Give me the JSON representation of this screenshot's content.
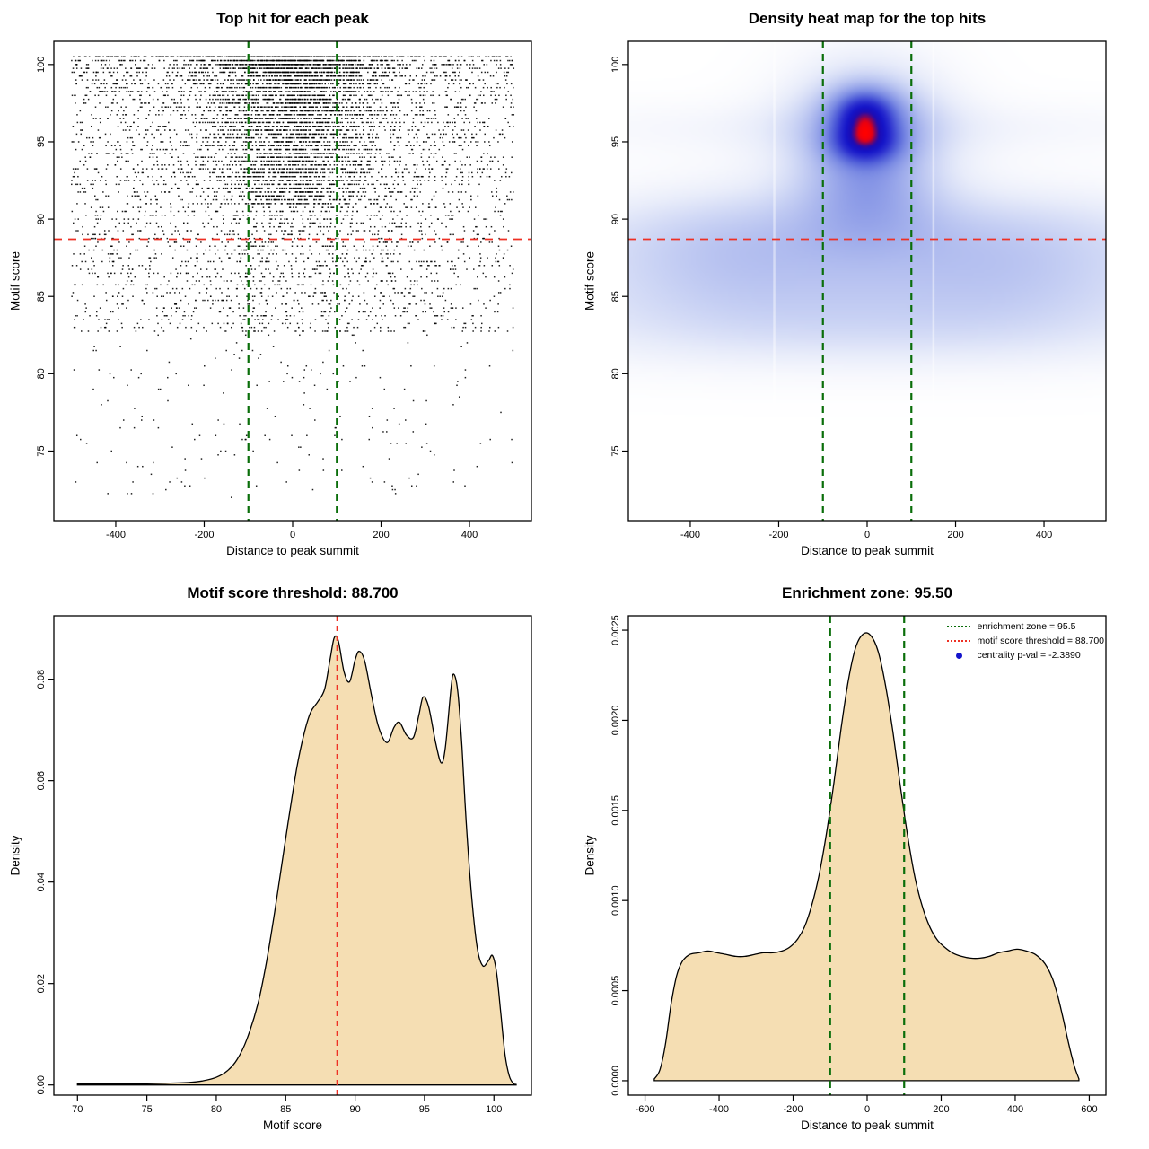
{
  "page": {
    "background": "#ffffff"
  },
  "chart_data": [
    {
      "key": "top_hit_scatter",
      "type": "scatter",
      "title": "Top hit for each peak",
      "xlabel": "Distance to peak summit",
      "ylabel": "Motif score",
      "xlim": [
        -540,
        540
      ],
      "ylim": [
        70.5,
        101.5
      ],
      "xticks": {
        "values": [
          -400,
          -200,
          0,
          200,
          400
        ],
        "labels": [
          "-400",
          "-200",
          "0",
          "200",
          "400"
        ]
      },
      "yticks": {
        "values": [
          75,
          80,
          85,
          90,
          95,
          100
        ],
        "labels": [
          "75",
          "80",
          "85",
          "90",
          "95",
          "100"
        ]
      },
      "grid": false,
      "point_color": "#000000",
      "threshold_line": {
        "y": 88.7,
        "color": "#ee3024",
        "style": "dashed"
      },
      "zone_lines": {
        "x": [
          -100,
          100
        ],
        "color": "#0a6e0a",
        "style": "dashed"
      },
      "scatter_model": {
        "seed": 1337,
        "n_background": 5200,
        "n_central_cluster": 3000,
        "x_uniform_range": [
          -500,
          500
        ],
        "central_cluster_x_sd": 95,
        "background_y": {
          "top": 100.6,
          "span": 18,
          "shape": 1.55
        },
        "cluster_y": {
          "top": 100.45,
          "span": 9.5,
          "shape": 1.4
        },
        "low_tail_fraction": 0.04,
        "low_tail_y_range": [
          72,
          83
        ],
        "score_quantum": 0.25
      }
    },
    {
      "key": "top_hit_density_heatmap",
      "type": "heatmap",
      "title": "Density heat map for the top hits",
      "xlabel": "Distance to peak summit",
      "ylabel": "Motif score",
      "xlim": [
        -540,
        540
      ],
      "ylim": [
        70.5,
        101.5
      ],
      "xticks": {
        "values": [
          -400,
          -200,
          0,
          200,
          400
        ],
        "labels": [
          "-400",
          "-200",
          "0",
          "200",
          "400"
        ]
      },
      "yticks": {
        "values": [
          75,
          80,
          85,
          90,
          95,
          100
        ],
        "labels": [
          "75",
          "80",
          "85",
          "90",
          "95",
          "100"
        ]
      },
      "grid": false,
      "threshold_line": {
        "y": 88.7,
        "color": "#ee3024",
        "style": "dashed"
      },
      "zone_lines": {
        "x": [
          -100,
          100
        ],
        "color": "#0a6e0a",
        "style": "dashed"
      },
      "hotspot": {
        "x": 0,
        "y": 96,
        "peak_color": "#ff0000"
      },
      "colormap": [
        {
          "t": 0.0,
          "c": "#ffffff"
        },
        {
          "t": 0.04,
          "c": "#f7f8fd"
        },
        {
          "t": 0.1,
          "c": "#e8ecfa"
        },
        {
          "t": 0.2,
          "c": "#c9d2f4"
        },
        {
          "t": 0.33,
          "c": "#a3b0ec"
        },
        {
          "t": 0.47,
          "c": "#7a8ae3"
        },
        {
          "t": 0.6,
          "c": "#4f5dd8"
        },
        {
          "t": 0.72,
          "c": "#2b2fcf"
        },
        {
          "t": 0.82,
          "c": "#1414c8"
        },
        {
          "t": 0.9,
          "c": "#1d0bb2"
        },
        {
          "t": 0.945,
          "c": "#7a0660"
        },
        {
          "t": 0.975,
          "c": "#e60012"
        },
        {
          "t": 1.0,
          "c": "#ff0000"
        }
      ],
      "density_kernels": [
        {
          "x": 0,
          "y": 86.3,
          "sx": 600,
          "sy": 2.8,
          "a": 0.42
        },
        {
          "x": 0,
          "y": 89.3,
          "sx": 600,
          "sy": 2.0,
          "a": 0.3
        },
        {
          "x": 0,
          "y": 83.8,
          "sx": 600,
          "sy": 2.4,
          "a": 0.22
        },
        {
          "x": -310,
          "y": 88.2,
          "sx": 150,
          "sy": 3.0,
          "a": 0.18
        },
        {
          "x": 330,
          "y": 87.2,
          "sx": 160,
          "sy": 3.0,
          "a": 0.16
        },
        {
          "x": 0,
          "y": 95.9,
          "sx": 600,
          "sy": 1.3,
          "a": 0.16
        },
        {
          "x": 0,
          "y": 95.7,
          "sx": 135,
          "sy": 3.3,
          "a": 0.55
        },
        {
          "x": 0,
          "y": 95.7,
          "sx": 95,
          "sy": 2.3,
          "a": 0.5
        },
        {
          "x": -5,
          "y": 96.9,
          "sx": 52,
          "sy": 1.1,
          "a": 1.35
        },
        {
          "x": -5,
          "y": 94.9,
          "sx": 56,
          "sy": 0.95,
          "a": 1.15
        },
        {
          "x": 0,
          "y": 92.3,
          "sx": 95,
          "sy": 1.8,
          "a": 0.35
        },
        {
          "x": 0,
          "y": 90.3,
          "sx": 130,
          "sy": 2.2,
          "a": 0.3
        },
        {
          "x": 0,
          "y": 82.3,
          "sx": 500,
          "sy": 1.6,
          "a": 0.1
        }
      ],
      "white_streaks_x": [
        -210,
        150
      ]
    },
    {
      "key": "motif_score_density",
      "type": "density",
      "title": "Motif score threshold: 88.700",
      "xlabel": "Motif score",
      "ylabel": "Density",
      "xlim": [
        68.3,
        102.7
      ],
      "ylim": [
        -0.002,
        0.0925
      ],
      "xticks": {
        "values": [
          70,
          75,
          80,
          85,
          90,
          95,
          100
        ],
        "labels": [
          "70",
          "75",
          "80",
          "85",
          "90",
          "95",
          "100"
        ]
      },
      "yticks": {
        "values": [
          0,
          0.02,
          0.04,
          0.06,
          0.08
        ],
        "labels": [
          "0.00",
          "0.02",
          "0.04",
          "0.06",
          "0.08"
        ]
      },
      "grid": false,
      "fill_color": "#f5deb3",
      "line_color": "#000000",
      "threshold_line": {
        "x": 88.7,
        "color": "#ee3024",
        "style": "dashed"
      },
      "curve": [
        [
          70,
          0.0002
        ],
        [
          72,
          0.0002
        ],
        [
          74,
          0.0002
        ],
        [
          76,
          0.0003
        ],
        [
          78,
          0.0005
        ],
        [
          79,
          0.0008
        ],
        [
          80,
          0.0015
        ],
        [
          80.8,
          0.0028
        ],
        [
          81.5,
          0.005
        ],
        [
          82.2,
          0.009
        ],
        [
          83,
          0.016
        ],
        [
          83.6,
          0.024
        ],
        [
          84.2,
          0.034
        ],
        [
          84.8,
          0.045
        ],
        [
          85.3,
          0.054
        ],
        [
          85.8,
          0.0625
        ],
        [
          86.3,
          0.069
        ],
        [
          86.8,
          0.0735
        ],
        [
          87.3,
          0.0755
        ],
        [
          87.8,
          0.078
        ],
        [
          88.2,
          0.084
        ],
        [
          88.5,
          0.0882
        ],
        [
          88.8,
          0.0875
        ],
        [
          89.2,
          0.0815
        ],
        [
          89.6,
          0.0795
        ],
        [
          90,
          0.0838
        ],
        [
          90.3,
          0.0855
        ],
        [
          90.7,
          0.0835
        ],
        [
          91.2,
          0.0765
        ],
        [
          91.7,
          0.0705
        ],
        [
          92.3,
          0.0675
        ],
        [
          92.8,
          0.0705
        ],
        [
          93.2,
          0.0715
        ],
        [
          93.7,
          0.069
        ],
        [
          94.2,
          0.0685
        ],
        [
          94.6,
          0.073
        ],
        [
          94.9,
          0.0765
        ],
        [
          95.3,
          0.0745
        ],
        [
          95.8,
          0.0675
        ],
        [
          96.2,
          0.0635
        ],
        [
          96.5,
          0.0665
        ],
        [
          96.9,
          0.078
        ],
        [
          97.1,
          0.081
        ],
        [
          97.4,
          0.0775
        ],
        [
          97.7,
          0.0665
        ],
        [
          98,
          0.052
        ],
        [
          98.4,
          0.037
        ],
        [
          98.8,
          0.027
        ],
        [
          99.2,
          0.0235
        ],
        [
          99.6,
          0.0245
        ],
        [
          99.9,
          0.0255
        ],
        [
          100.2,
          0.022
        ],
        [
          100.5,
          0.014
        ],
        [
          100.8,
          0.006
        ],
        [
          101.1,
          0.0018
        ],
        [
          101.4,
          0.0003
        ],
        [
          101.6,
          0.0001
        ]
      ]
    },
    {
      "key": "summit_distance_density",
      "type": "density",
      "title": "Enrichment zone: 95.50",
      "xlabel": "Distance to peak summit",
      "ylabel": "Density",
      "xlim": [
        -645,
        645
      ],
      "ylim": [
        -8e-05,
        0.00258
      ],
      "xticks": {
        "values": [
          -600,
          -400,
          -200,
          0,
          200,
          400,
          600
        ],
        "labels": [
          "-600",
          "-400",
          "-200",
          "0",
          "200",
          "400",
          "600"
        ]
      },
      "yticks": {
        "values": [
          0,
          0.0005,
          0.001,
          0.0015,
          0.002,
          0.0025
        ],
        "labels": [
          "0.0000",
          "0.0005",
          "0.0010",
          "0.0015",
          "0.0020",
          "0.0025"
        ]
      },
      "grid": false,
      "fill_color": "#f5deb3",
      "line_color": "#000000",
      "zone_lines": {
        "x": [
          -100,
          100
        ],
        "color": "#0a6e0a",
        "style": "dashed"
      },
      "curve": [
        [
          -575,
          1e-05
        ],
        [
          -560,
          6e-05
        ],
        [
          -545,
          0.0002
        ],
        [
          -530,
          0.00042
        ],
        [
          -515,
          0.00058
        ],
        [
          -500,
          0.00066
        ],
        [
          -480,
          0.0007
        ],
        [
          -455,
          0.00071
        ],
        [
          -430,
          0.00072
        ],
        [
          -405,
          0.00071
        ],
        [
          -380,
          0.0007
        ],
        [
          -355,
          0.00069
        ],
        [
          -330,
          0.00069
        ],
        [
          -305,
          0.0007
        ],
        [
          -280,
          0.00071
        ],
        [
          -255,
          0.00071
        ],
        [
          -230,
          0.00072
        ],
        [
          -210,
          0.00074
        ],
        [
          -190,
          0.00078
        ],
        [
          -170,
          0.00085
        ],
        [
          -150,
          0.00097
        ],
        [
          -130,
          0.00114
        ],
        [
          -110,
          0.00137
        ],
        [
          -90,
          0.00165
        ],
        [
          -70,
          0.00196
        ],
        [
          -50,
          0.00223
        ],
        [
          -30,
          0.00241
        ],
        [
          -10,
          0.00248
        ],
        [
          10,
          0.00247
        ],
        [
          30,
          0.00238
        ],
        [
          50,
          0.00219
        ],
        [
          70,
          0.00193
        ],
        [
          90,
          0.00163
        ],
        [
          110,
          0.00135
        ],
        [
          130,
          0.00112
        ],
        [
          150,
          0.00096
        ],
        [
          170,
          0.00085
        ],
        [
          190,
          0.00078
        ],
        [
          210,
          0.00074
        ],
        [
          230,
          0.00071
        ],
        [
          255,
          0.00069
        ],
        [
          280,
          0.00068
        ],
        [
          305,
          0.00068
        ],
        [
          330,
          0.00069
        ],
        [
          355,
          0.00071
        ],
        [
          380,
          0.00072
        ],
        [
          405,
          0.00073
        ],
        [
          430,
          0.00072
        ],
        [
          455,
          0.0007
        ],
        [
          480,
          0.00065
        ],
        [
          500,
          0.00057
        ],
        [
          515,
          0.00047
        ],
        [
          530,
          0.00034
        ],
        [
          545,
          0.0002
        ],
        [
          560,
          8e-05
        ],
        [
          572,
          1e-05
        ]
      ],
      "legend": [
        {
          "label": "enrichment zone = 95.5",
          "color": "#0a6e0a",
          "marker": "dotted-line"
        },
        {
          "label": "motif score threshold = 88.700",
          "color": "#ee3024",
          "marker": "dotted-line"
        },
        {
          "label": "centrality p-val = -2.3890",
          "color": "#1414cc",
          "marker": "dot"
        }
      ]
    }
  ]
}
